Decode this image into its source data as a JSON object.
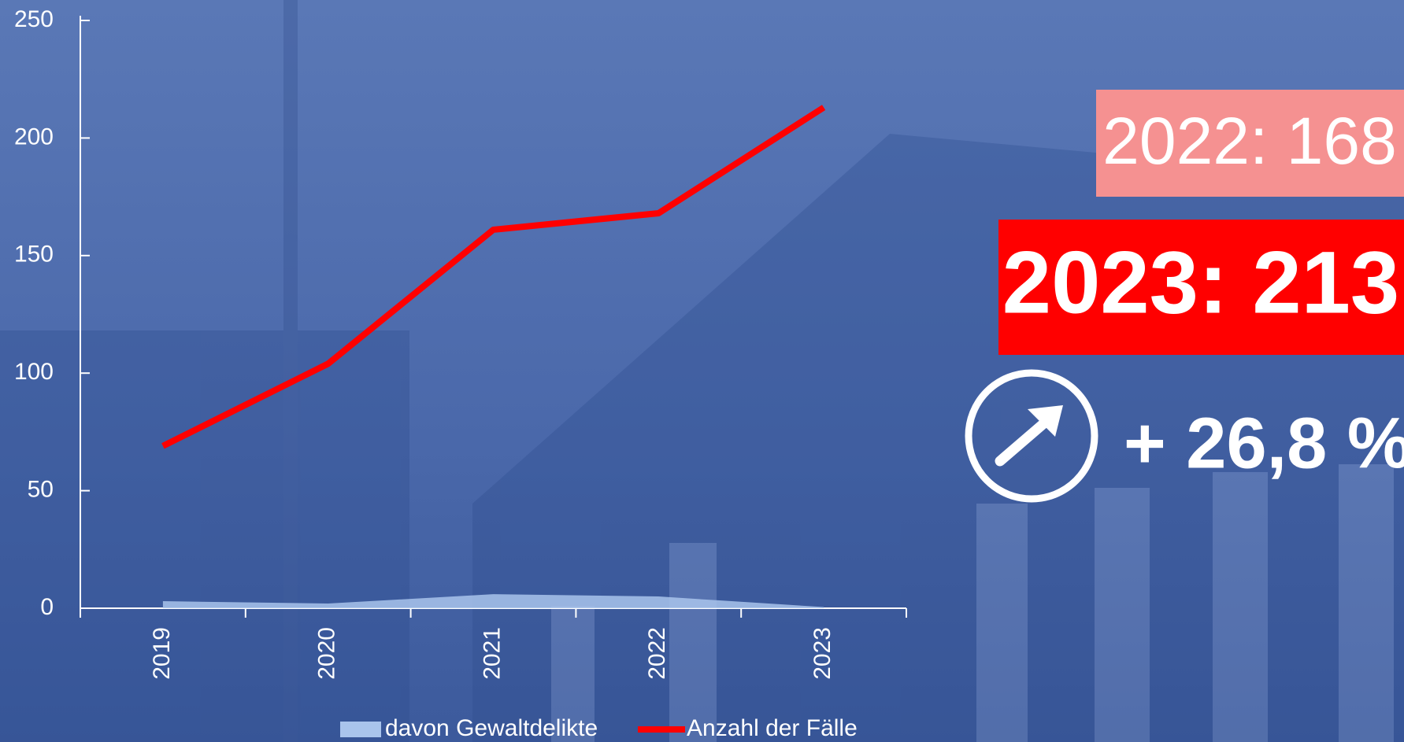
{
  "chart_data": {
    "type": "line",
    "categories": [
      "2019",
      "2020",
      "2021",
      "2022",
      "2023"
    ],
    "series": [
      {
        "name": "davon Gewaltdelikte",
        "color": "#a9c4ec",
        "kind": "area",
        "values": [
          3,
          2,
          6,
          5,
          0.5
        ]
      },
      {
        "name": "Anzahl der Fälle",
        "color": "#ff0000",
        "kind": "line",
        "values": [
          69,
          104,
          161,
          168,
          213
        ]
      }
    ],
    "ylim": [
      0,
      250
    ],
    "yticks": [
      0,
      50,
      100,
      150,
      200,
      250
    ],
    "legend": "bottom",
    "annotations": [
      "2022: 168",
      "2023: 213",
      "+ 26,8 %"
    ]
  }
}
